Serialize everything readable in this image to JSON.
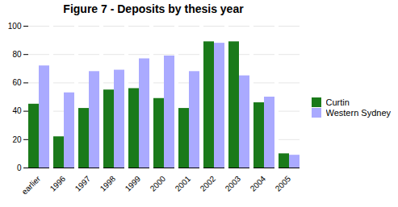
{
  "chart_data": {
    "type": "bar",
    "title": "Figure 7 - Deposits by thesis year",
    "categories": [
      "earlier",
      "1996",
      "1997",
      "1998",
      "1999",
      "2000",
      "2001",
      "2002",
      "2003",
      "2004",
      "2005"
    ],
    "series": [
      {
        "name": "Curtin",
        "color": "#1a7a1a",
        "values": [
          45,
          22,
          42,
          55,
          56,
          49,
          42,
          89,
          89,
          46,
          10
        ]
      },
      {
        "name": "Western Sydney",
        "color": "#aaaaff",
        "values": [
          72,
          53,
          68,
          69,
          77,
          79,
          68,
          88,
          65,
          50,
          9
        ]
      }
    ],
    "ylim": [
      0,
      100
    ],
    "yticks": [
      0,
      20,
      40,
      60,
      80,
      100
    ],
    "grid": true,
    "legend": "right"
  }
}
